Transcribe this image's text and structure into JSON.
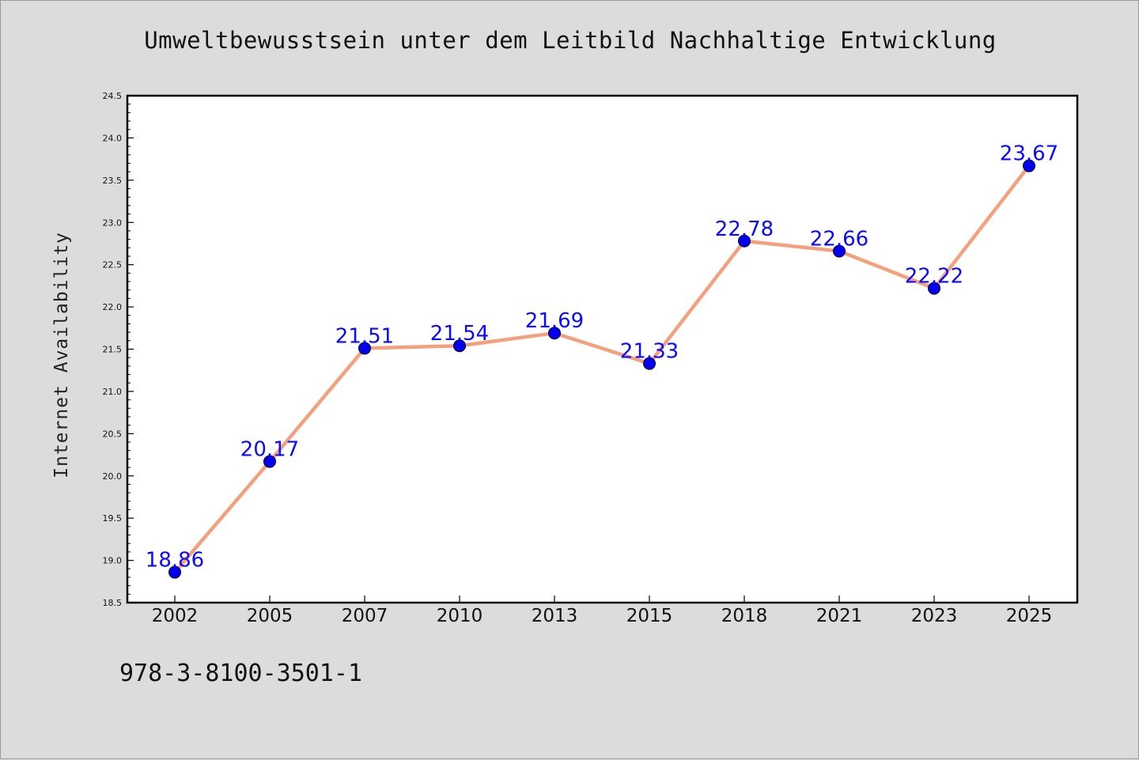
{
  "chart_data": {
    "type": "line",
    "title": "Umweltbewusstsein unter dem Leitbild Nachhaltige Entwicklung",
    "xlabel": "",
    "ylabel": "Internet Availability",
    "categories": [
      "2002",
      "2005",
      "2007",
      "2010",
      "2013",
      "2015",
      "2018",
      "2021",
      "2023",
      "2025"
    ],
    "series": [
      {
        "values": [
          18.86,
          20.17,
          21.51,
          21.54,
          21.69,
          21.33,
          22.78,
          22.66,
          22.22,
          23.67
        ],
        "labels": [
          "18.86",
          "20.17",
          "21.51",
          "21.54",
          "21.69",
          "21.33",
          "22.78",
          "22.66",
          "22.22",
          "23.67"
        ],
        "line_color": "#f4a07c",
        "marker_color": "#0000ee"
      }
    ],
    "ylim": [
      18.5,
      24.5
    ],
    "yticks": [
      "18.5",
      "19.0",
      "19.5",
      "20.0",
      "20.5",
      "21.0",
      "21.5",
      "22.0",
      "22.5",
      "23.0",
      "23.5",
      "24.0",
      "24.5"
    ],
    "grid": false,
    "legend": "none"
  },
  "footer": {
    "code": "978-3-8100-3501-1"
  },
  "colors": {
    "background": "#dcdcdc",
    "plot_background": "#ffffff",
    "label_color": "#0a0aff"
  }
}
